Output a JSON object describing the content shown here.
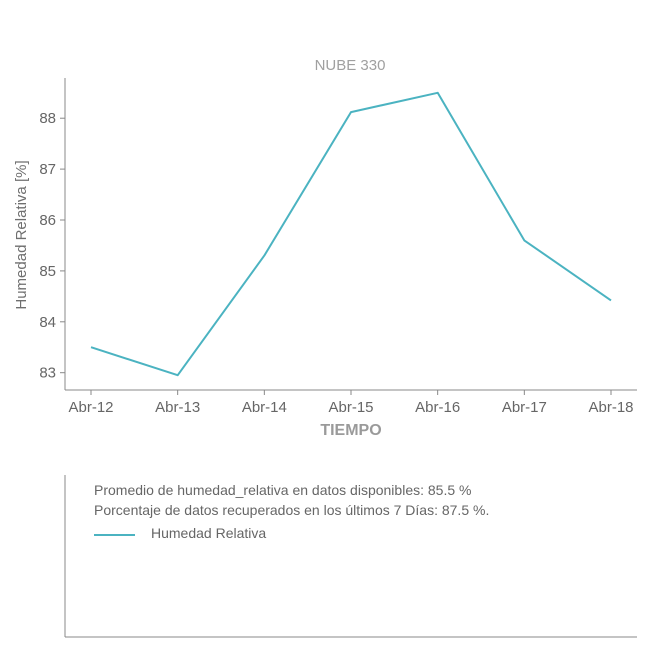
{
  "chart_data": {
    "type": "line",
    "title": "NUBE 330",
    "xlabel": "TIEMPO",
    "ylabel": "Humedad Relativa [%]",
    "categories": [
      "Abr-12",
      "Abr-13",
      "Abr-14",
      "Abr-15",
      "Abr-16",
      "Abr-17",
      "Abr-18"
    ],
    "series": [
      {
        "name": "Humedad Relativa",
        "values": [
          83.5,
          82.95,
          85.3,
          88.12,
          88.5,
          85.6,
          84.42
        ]
      }
    ],
    "yticks": [
      83,
      84,
      85,
      86,
      87,
      88
    ],
    "ylim": [
      82.66,
      88.79
    ],
    "grid": false,
    "legend": "lower-panel",
    "colors": {
      "series": "#4bb3c1",
      "axis": "#888888"
    }
  },
  "info": {
    "average": "Promedio de humedad_relativa en datos disponibles: 85.5 %",
    "percentage": "Porcentaje de datos recuperados en los últimos 7 Días: 87.5 %."
  }
}
